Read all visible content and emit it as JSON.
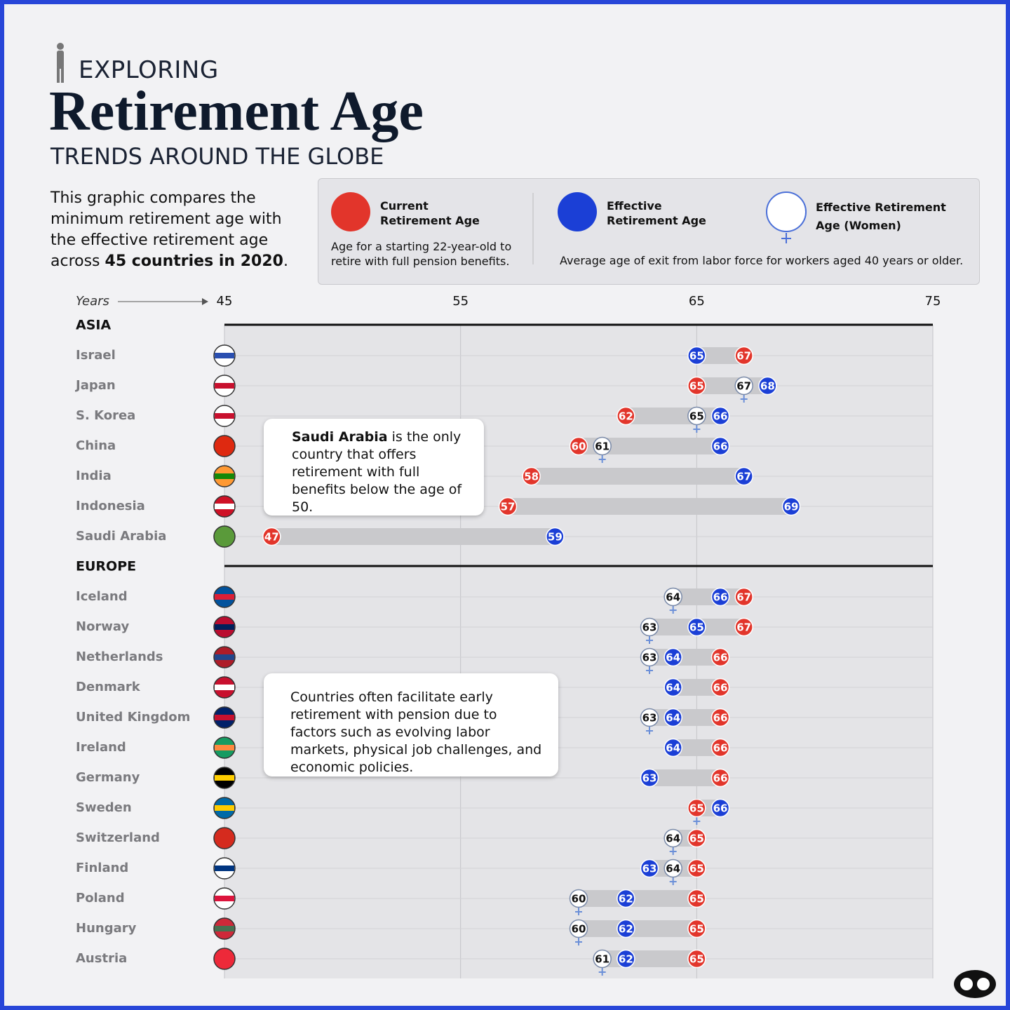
{
  "header": {
    "kicker": "EXPLORING",
    "title": "Retirement Age",
    "subtitle": "TRENDS AROUND THE GLOBE"
  },
  "intro": {
    "text": "This graphic compares the minimum retirement age with the effective retirement age across ",
    "bold": "45 countries in 2020",
    "end": "."
  },
  "legend_notes": [
    "Age for a starting 22-year-old to retire with full pension benefits.",
    "Average age of exit from labor force for workers aged 40 years or older."
  ],
  "annotations": [
    {
      "bold": "Saudi Arabia",
      "text": " is the only country that offers retirement with full benefits below the age of 50."
    },
    {
      "bold": "",
      "text": "Countries often facilitate early retirement with pension due to factors such as evolving labor markets, physical job challenges, and economic policies."
    }
  ],
  "chart_data": {
    "type": "dumbbell",
    "xlabel": "Years",
    "xlim": [
      45,
      75
    ],
    "xticks": [
      45,
      55,
      65,
      75
    ],
    "grid": true,
    "series": [
      {
        "name": "Current Retirement Age",
        "color": "#e2352b"
      },
      {
        "name": "Effective Retirement Age",
        "color": "#1b3fd6"
      },
      {
        "name": "Effective Retirement Age (Women)",
        "color": "#ffffff"
      }
    ],
    "panels": [
      {
        "title": "ASIA",
        "categories": [
          "Israel",
          "Japan",
          "S. Korea",
          "China",
          "India",
          "Indonesia",
          "Saudi Arabia"
        ],
        "values": [
          [
            67,
            65,
            62,
            60,
            58,
            57,
            47
          ],
          [
            65,
            68,
            66,
            66,
            67,
            69,
            59
          ],
          [
            null,
            67,
            65,
            61,
            null,
            null,
            null
          ]
        ]
      },
      {
        "title": "EUROPE",
        "categories": [
          "Iceland",
          "Norway",
          "Netherlands",
          "Denmark",
          "United Kingdom",
          "Ireland",
          "Germany",
          "Sweden",
          "Switzerland",
          "Finland",
          "Poland",
          "Hungary",
          "Austria"
        ],
        "values": [
          [
            67,
            67,
            66,
            66,
            66,
            66,
            66,
            65,
            65,
            65,
            65,
            65,
            65
          ],
          [
            66,
            65,
            64,
            64,
            64,
            64,
            63,
            66,
            65,
            63,
            62,
            62,
            62
          ],
          [
            64,
            63,
            63,
            null,
            63,
            null,
            null,
            65,
            64,
            64,
            60,
            60,
            61
          ]
        ]
      }
    ]
  }
}
